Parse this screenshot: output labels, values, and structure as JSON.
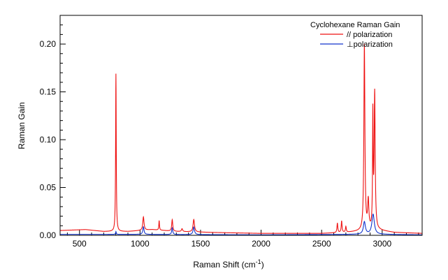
{
  "chart_data": {
    "type": "line",
    "title": "",
    "xlabel": "Raman Shift (cm",
    "xlabel_sup": "-1",
    "xlabel_tail": ")",
    "ylabel": "Raman Gain",
    "xlim": [
      340,
      3330
    ],
    "ylim": [
      0.0,
      0.23
    ],
    "x_ticks": [
      500,
      1000,
      1500,
      2000,
      2500,
      3000
    ],
    "x_tick_labels": [
      "500",
      "1000",
      "1500",
      "2000",
      "2500",
      "3000"
    ],
    "y_ticks": [
      0.0,
      0.05,
      0.1,
      0.15,
      0.2
    ],
    "y_tick_labels": [
      "0.00",
      "0.05",
      "0.10",
      "0.15",
      "0.20"
    ],
    "grid": false,
    "legend": {
      "title": "Cyclohexane Raman Gain",
      "placement": "top-right"
    },
    "series": [
      {
        "name": "// polarization",
        "color": "#ee1111",
        "baseline": [
          [
            340,
            0.005
          ],
          [
            550,
            0.006
          ],
          [
            700,
            0.004
          ],
          [
            900,
            0.004
          ],
          [
            1100,
            0.006
          ],
          [
            1300,
            0.004
          ],
          [
            1600,
            0.003
          ],
          [
            2000,
            0.002
          ],
          [
            2500,
            0.002
          ],
          [
            2700,
            0.003
          ],
          [
            2800,
            0.004
          ],
          [
            2980,
            0.005
          ],
          [
            3100,
            0.003
          ],
          [
            3330,
            0.002
          ]
        ],
        "peaks": [
          {
            "x": 801,
            "y": 0.165,
            "w": 3
          },
          {
            "x": 1028,
            "y": 0.014,
            "w": 6
          },
          {
            "x": 1158,
            "y": 0.01,
            "w": 3
          },
          {
            "x": 1266,
            "y": 0.012,
            "w": 5
          },
          {
            "x": 1347,
            "y": 0.003,
            "w": 6
          },
          {
            "x": 1444,
            "y": 0.013,
            "w": 7
          },
          {
            "x": 2630,
            "y": 0.01,
            "w": 4
          },
          {
            "x": 2665,
            "y": 0.012,
            "w": 4
          },
          {
            "x": 2700,
            "y": 0.006,
            "w": 4
          },
          {
            "x": 2853,
            "y": 0.194,
            "w": 5
          },
          {
            "x": 2885,
            "y": 0.03,
            "w": 6
          },
          {
            "x": 2923,
            "y": 0.117,
            "w": 3
          },
          {
            "x": 2938,
            "y": 0.143,
            "w": 5
          }
        ]
      },
      {
        "name": "⊥polarization",
        "color": "#1133cc",
        "baseline": [
          [
            340,
            0.001
          ],
          [
            1000,
            0.001
          ],
          [
            2000,
            0.0005
          ],
          [
            2800,
            0.001
          ],
          [
            3000,
            0.001
          ],
          [
            3330,
            0.0005
          ]
        ],
        "peaks": [
          {
            "x": 801,
            "y": 0.003,
            "w": 3
          },
          {
            "x": 1028,
            "y": 0.008,
            "w": 6
          },
          {
            "x": 1266,
            "y": 0.007,
            "w": 5
          },
          {
            "x": 1444,
            "y": 0.008,
            "w": 7
          },
          {
            "x": 2853,
            "y": 0.013,
            "w": 10
          },
          {
            "x": 2925,
            "y": 0.021,
            "w": 12
          }
        ]
      }
    ]
  }
}
